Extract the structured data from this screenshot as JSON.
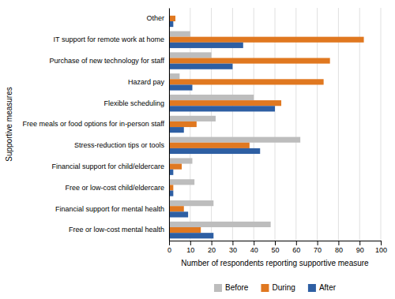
{
  "chart_data": {
    "type": "bar",
    "orientation": "horizontal",
    "categories": [
      "Other",
      "IT support for remote work at home",
      "Purchase of new technology for staff",
      "Hazard pay",
      "Flexible scheduling",
      "Free meals or food options for in-person staff",
      "Stress-reduction tips or tools",
      "Financial support for child/eldercare",
      "Free or low-cost child/eldercare",
      "Financial support for mental health",
      "Free or low-cost mental health"
    ],
    "series": [
      {
        "name": "Before",
        "color": "#bdbdbd",
        "values": [
          0,
          10,
          20,
          5,
          40,
          22,
          62,
          11,
          12,
          21,
          48
        ]
      },
      {
        "name": "During",
        "color": "#e07820",
        "values": [
          3,
          92,
          76,
          73,
          53,
          13,
          38,
          6,
          2,
          7,
          15
        ]
      },
      {
        "name": "After",
        "color": "#2e5fa3",
        "values": [
          2,
          35,
          30,
          11,
          50,
          7,
          43,
          2,
          2,
          9,
          21
        ]
      }
    ],
    "xlabel": "Number of respondents reporting supportive measure",
    "ylabel": "Supportive measures",
    "xlim": [
      0,
      100
    ],
    "xticks": [
      0,
      10,
      20,
      30,
      40,
      50,
      60,
      70,
      80,
      90,
      100
    ],
    "grid": true,
    "legend": "bottom"
  }
}
